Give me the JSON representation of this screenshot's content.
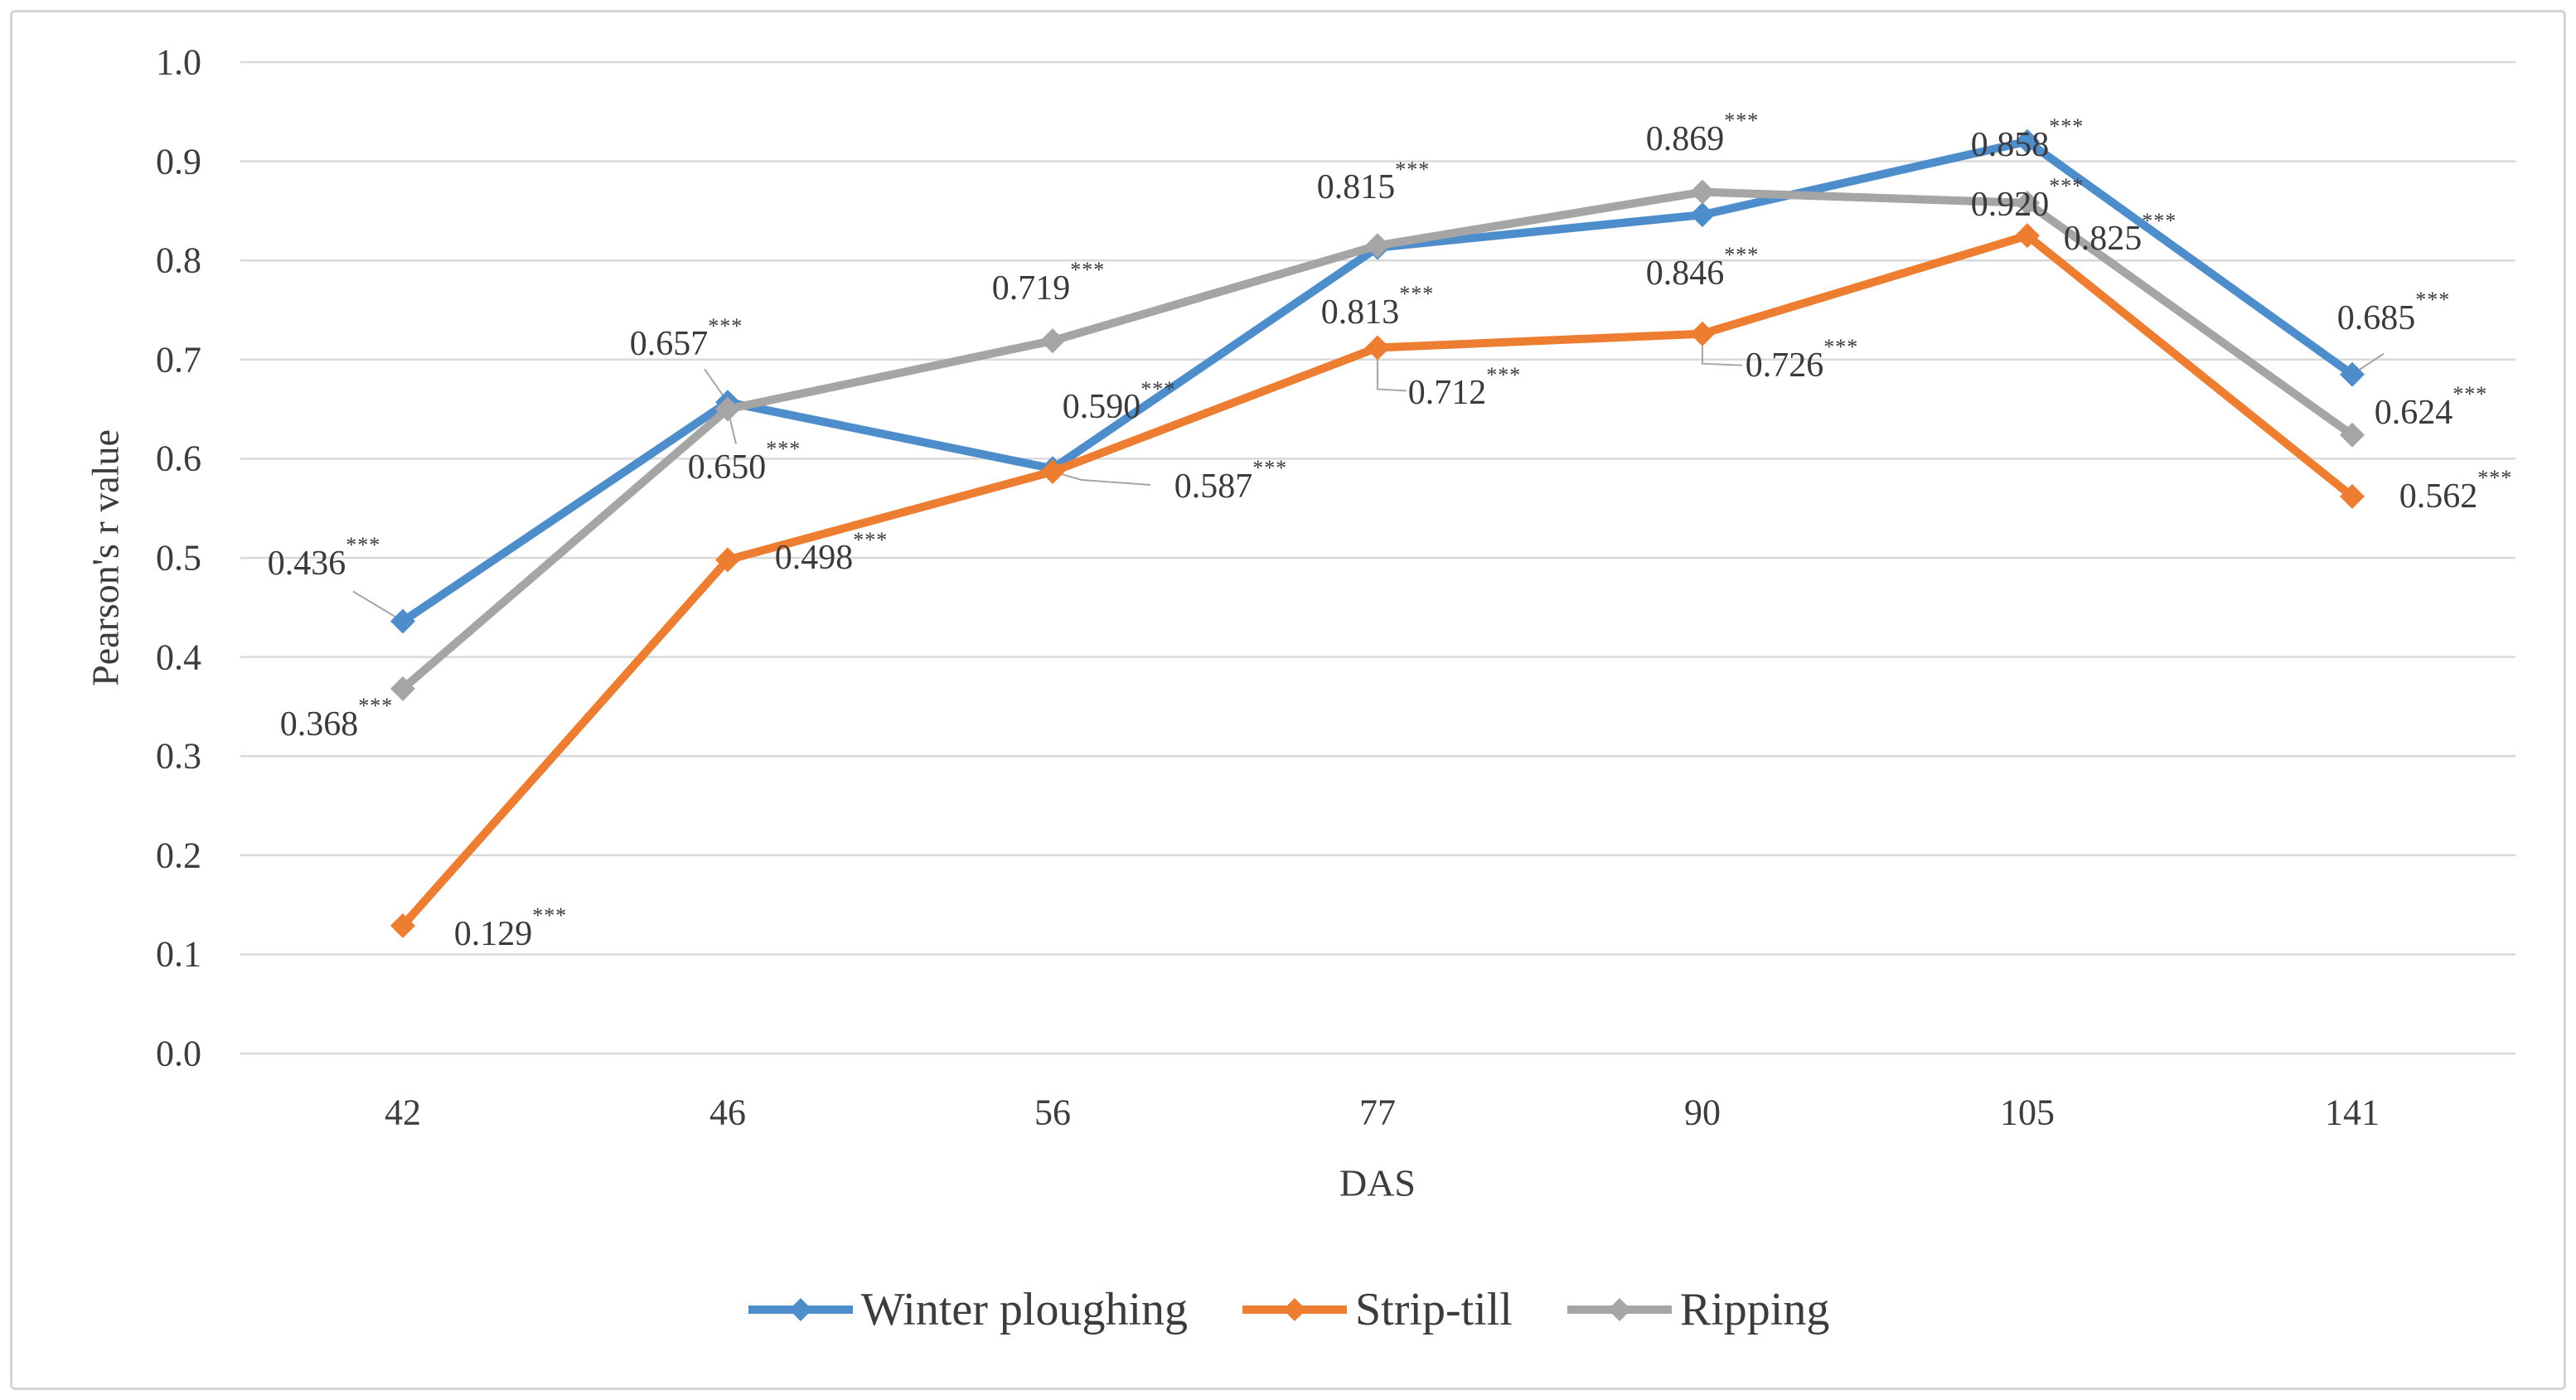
{
  "chart_data": {
    "type": "line",
    "title": "",
    "xlabel": "DAS",
    "ylabel": "Pearson's r value",
    "x_categories": [
      "42",
      "46",
      "56",
      "77",
      "90",
      "105",
      "141"
    ],
    "ylim": [
      0.0,
      1.0
    ],
    "ytick_step": 0.1,
    "ytick_labels": [
      "0.0",
      "0.1",
      "0.2",
      "0.3",
      "0.4",
      "0.5",
      "0.6",
      "0.7",
      "0.8",
      "0.9",
      "1.0"
    ],
    "grid": "horizontal",
    "legend_position": "bottom-center",
    "significance_suffix": "***",
    "colors": {
      "grid": "#D9D9D9",
      "leader": "#A6A6A6",
      "text": "#3C3C3C",
      "frame": "#D3D3D3"
    },
    "series": [
      {
        "name": "Winter ploughing",
        "color": "#4E8DCB",
        "values": [
          0.436,
          0.657,
          0.59,
          0.813,
          0.846,
          0.92,
          0.685
        ],
        "labels": [
          "0.436",
          "0.657",
          "0.590",
          "0.813",
          "0.846",
          "0.920",
          "0.685"
        ],
        "label_placement": [
          {
            "dx": -95,
            "dy": -70,
            "leader": [
              [
                -60,
                -36
              ]
            ]
          },
          {
            "dx": -50,
            "dy": -70,
            "leader": [
              [
                -28,
                -40
              ]
            ]
          },
          {
            "dx": 80,
            "dy": -74,
            "leader": null
          },
          {
            "dx": 0,
            "dy": 78,
            "leader": null
          },
          {
            "dx": 0,
            "dy": 71,
            "leader": null
          },
          {
            "dx": 0,
            "dy": 76,
            "leader": null
          },
          {
            "dx": 50,
            "dy": -68,
            "leader": [
              [
                38,
                -25
              ]
            ]
          }
        ]
      },
      {
        "name": "Strip-till",
        "color": "#ED7D31",
        "values": [
          0.129,
          0.498,
          0.587,
          0.712,
          0.726,
          0.825,
          0.562
        ],
        "labels": [
          "0.129",
          "0.498",
          "0.587",
          "0.712",
          "0.726",
          "0.825",
          "0.562"
        ],
        "label_placement": [
          {
            "dx": 130,
            "dy": 10,
            "leader": null
          },
          {
            "dx": 125,
            "dy": -2,
            "leader": null
          },
          {
            "dx": 215,
            "dy": 18,
            "leader": [
              [
                35,
                10
              ],
              [
                118,
                16
              ]
            ]
          },
          {
            "dx": 105,
            "dy": 55,
            "leader": [
              [
                0,
                50
              ],
              [
                35,
                52
              ]
            ]
          },
          {
            "dx": 120,
            "dy": 38,
            "leader": [
              [
                0,
                36
              ],
              [
                48,
                38
              ]
            ]
          },
          {
            "dx": 112,
            "dy": 4,
            "leader": null
          },
          {
            "dx": 125,
            "dy": 0,
            "leader": null
          }
        ]
      },
      {
        "name": "Ripping",
        "color": "#A5A5A5",
        "values": [
          0.368,
          0.65,
          0.719,
          0.815,
          0.869,
          0.858,
          0.624
        ],
        "labels": [
          "0.368",
          "0.650",
          "0.719",
          "0.815",
          "0.869",
          "0.858",
          "0.624"
        ],
        "label_placement": [
          {
            "dx": -80,
            "dy": 43,
            "leader": null
          },
          {
            "dx": 20,
            "dy": 70,
            "leader": [
              [
                10,
                42
              ]
            ]
          },
          {
            "dx": -5,
            "dy": -63,
            "leader": null
          },
          {
            "dx": -5,
            "dy": -70,
            "leader": null
          },
          {
            "dx": 0,
            "dy": -64,
            "leader": null
          },
          {
            "dx": 0,
            "dy": -70,
            "leader": null
          },
          {
            "dx": 95,
            "dy": -27,
            "leader": null
          }
        ]
      }
    ]
  }
}
